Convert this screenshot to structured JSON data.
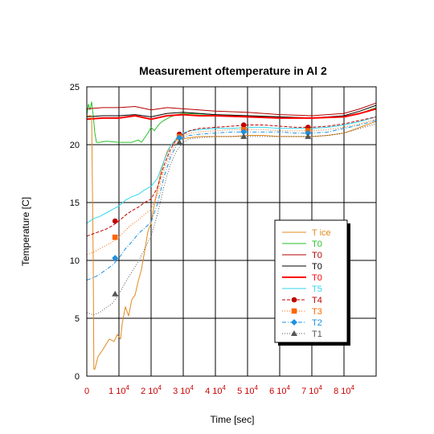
{
  "chart_data": {
    "type": "line",
    "title": "Measurement oftemperature in Al 2",
    "xlabel": "Time [sec]",
    "ylabel": "Temperature [C]",
    "xlim": [
      0,
      90000
    ],
    "ylim": [
      0,
      25
    ],
    "grid": true,
    "legend_position": "lower-right",
    "x_ticks": [
      {
        "value": 0,
        "base": "0",
        "exp": ""
      },
      {
        "value": 10000,
        "base": "1 10",
        "exp": "4"
      },
      {
        "value": 20000,
        "base": "2 10",
        "exp": "4"
      },
      {
        "value": 30000,
        "base": "3 10",
        "exp": "4"
      },
      {
        "value": 40000,
        "base": "4 10",
        "exp": "4"
      },
      {
        "value": 50000,
        "base": "5 10",
        "exp": "4"
      },
      {
        "value": 60000,
        "base": "6 10",
        "exp": "4"
      },
      {
        "value": 70000,
        "base": "7 10",
        "exp": "4"
      },
      {
        "value": 80000,
        "base": "8 10",
        "exp": "4"
      }
    ],
    "y_ticks": [
      "0",
      "5",
      "10",
      "15",
      "20",
      "25"
    ],
    "x_tick_color": "#cc0000",
    "series": [
      {
        "name": "T ice",
        "color": "#e08a1e",
        "width": 1,
        "dash": "",
        "marker": "",
        "x": [
          0,
          1500,
          2000,
          2200,
          2500,
          3500,
          5000,
          7000,
          8500,
          9500,
          10500,
          11000,
          12000,
          13000,
          14000,
          15000,
          16000,
          17000,
          18000,
          19000,
          20000,
          21000,
          22000,
          23000,
          24000,
          25000,
          26000,
          27000,
          28000,
          30000,
          32000,
          35000,
          40000,
          45000,
          50000,
          55000,
          60000,
          65000,
          70000,
          75000,
          80000,
          85000,
          90000
        ],
        "y": [
          22.5,
          22.5,
          10,
          0.6,
          0.6,
          1.7,
          2.3,
          3.2,
          3.0,
          3.6,
          3.2,
          4.5,
          6.0,
          5.2,
          6.6,
          7.0,
          8.2,
          9.2,
          10.8,
          12.5,
          13.2,
          14.8,
          16.2,
          17.6,
          18.6,
          19.4,
          19.9,
          20.2,
          20.4,
          20.5,
          20.6,
          20.7,
          20.7,
          20.7,
          20.8,
          20.8,
          20.7,
          20.7,
          20.7,
          20.8,
          21.0,
          21.5,
          22.0
        ]
      },
      {
        "name": "T0",
        "color": "#27c027",
        "width": 1,
        "dash": "",
        "marker": "",
        "x": [
          0,
          500,
          1000,
          1500,
          2000,
          2500,
          3000,
          4000,
          6000,
          10000,
          14000,
          16000,
          17000,
          18000,
          19000,
          20000,
          21000,
          22000,
          23000,
          24000,
          26000,
          28000,
          30000,
          40000,
          50000,
          60000,
          70000,
          80000,
          85000,
          90000
        ],
        "y": [
          22.5,
          23.5,
          23.0,
          23.7,
          22.5,
          21.0,
          20.2,
          20.2,
          20.3,
          20.2,
          20.2,
          20.4,
          20.2,
          20.6,
          21.0,
          21.5,
          21.2,
          21.6,
          21.9,
          22.1,
          22.4,
          22.6,
          22.7,
          22.6,
          22.5,
          22.4,
          22.3,
          22.4,
          22.7,
          23.2
        ]
      },
      {
        "name": "T0",
        "color": "#b50000",
        "width": 1,
        "dash": "",
        "marker": "",
        "x": [
          0,
          5000,
          10000,
          15000,
          20000,
          25000,
          30000,
          35000,
          40000,
          50000,
          60000,
          70000,
          80000,
          85000,
          90000
        ],
        "y": [
          23.1,
          23.2,
          23.2,
          23.3,
          23.0,
          23.2,
          23.1,
          23.0,
          22.9,
          22.8,
          22.6,
          22.5,
          22.7,
          23.1,
          23.6
        ]
      },
      {
        "name": "T0",
        "color": "#000000",
        "width": 1,
        "dash": "",
        "marker": "",
        "x": [
          0,
          5000,
          10000,
          15000,
          20000,
          25000,
          30000,
          40000,
          50000,
          60000,
          70000,
          80000,
          85000,
          90000
        ],
        "y": [
          22.4,
          22.5,
          22.5,
          22.6,
          22.4,
          22.7,
          22.8,
          22.6,
          22.5,
          22.4,
          22.3,
          22.5,
          22.9,
          23.4
        ]
      },
      {
        "name": "T0",
        "color": "#ff0000",
        "width": 2,
        "dash": "",
        "marker": "",
        "x": [
          0,
          5000,
          10000,
          15000,
          20000,
          25000,
          30000,
          35000,
          40000,
          50000,
          60000,
          70000,
          80000,
          85000,
          90000
        ],
        "y": [
          22.2,
          22.3,
          22.3,
          22.5,
          22.2,
          22.5,
          22.6,
          22.5,
          22.5,
          22.4,
          22.3,
          22.3,
          22.4,
          22.7,
          23.1
        ]
      },
      {
        "name": "T5",
        "color": "#33d6ee",
        "width": 1,
        "dash": "",
        "marker": "",
        "x": [
          0,
          2000,
          4000,
          6000,
          8000,
          10000,
          12000,
          14000,
          16000,
          18000,
          20000,
          22000,
          24000,
          26000,
          28000,
          30000,
          32000,
          35000,
          40000,
          45000,
          50000,
          55000,
          60000,
          65000,
          70000,
          75000,
          80000,
          85000,
          90000
        ],
        "y": [
          13.2,
          13.6,
          13.8,
          14.1,
          14.4,
          14.7,
          15.2,
          15.5,
          15.7,
          16.1,
          16.4,
          17.1,
          18.6,
          19.9,
          20.6,
          21.0,
          21.2,
          21.3,
          21.4,
          21.4,
          21.5,
          21.5,
          21.4,
          21.4,
          21.4,
          21.5,
          21.7,
          22.0,
          22.4
        ]
      },
      {
        "name": "T4",
        "color": "#c00000",
        "width": 1,
        "dash": "4,2",
        "marker": "circle",
        "x": [
          0,
          2000,
          4000,
          6000,
          8000,
          10000,
          12000,
          14000,
          16000,
          18000,
          20000,
          22000,
          24000,
          26000,
          28000,
          30000,
          32000,
          35000,
          40000,
          45000,
          50000,
          55000,
          60000,
          65000,
          70000,
          75000,
          80000,
          85000,
          90000
        ],
        "y": [
          12.1,
          12.3,
          12.5,
          12.7,
          13.0,
          13.4,
          13.9,
          14.3,
          14.6,
          15.0,
          15.3,
          16.3,
          18.2,
          19.6,
          20.5,
          20.9,
          21.2,
          21.4,
          21.5,
          21.6,
          21.7,
          21.7,
          21.6,
          21.5,
          21.5,
          21.6,
          21.8,
          22.1,
          22.4
        ]
      },
      {
        "name": "T3",
        "color": "#ff6600",
        "width": 1,
        "dash": "1,2",
        "marker": "square",
        "x": [
          0,
          2000,
          4000,
          6000,
          8000,
          10000,
          12000,
          14000,
          16000,
          18000,
          20000,
          22000,
          24000,
          26000,
          28000,
          30000,
          32000,
          35000,
          40000,
          45000,
          50000,
          55000,
          60000,
          65000,
          70000,
          75000,
          80000,
          85000,
          90000
        ],
        "y": [
          10.5,
          10.7,
          11.0,
          11.3,
          11.6,
          12.0,
          12.6,
          13.1,
          13.5,
          14.0,
          14.4,
          15.7,
          17.8,
          19.3,
          20.2,
          20.7,
          21.0,
          21.1,
          21.2,
          21.3,
          21.3,
          21.3,
          21.2,
          21.2,
          21.2,
          21.3,
          21.5,
          21.8,
          22.2
        ]
      },
      {
        "name": "T2",
        "color": "#1e90e0",
        "width": 1,
        "dash": "5,2,1,2",
        "marker": "diamond",
        "x": [
          0,
          2000,
          4000,
          6000,
          8000,
          10000,
          12000,
          14000,
          16000,
          18000,
          20000,
          22000,
          24000,
          26000,
          28000,
          30000,
          32000,
          35000,
          40000,
          45000,
          50000,
          55000,
          60000,
          65000,
          70000,
          75000,
          80000,
          85000,
          90000
        ],
        "y": [
          8.3,
          8.5,
          8.8,
          9.2,
          9.6,
          10.2,
          11.0,
          11.6,
          12.3,
          12.8,
          13.3,
          14.9,
          17.2,
          18.9,
          20.0,
          20.6,
          20.8,
          20.9,
          21.0,
          21.1,
          21.1,
          21.1,
          21.1,
          21.0,
          21.0,
          21.1,
          21.4,
          21.7,
          22.1
        ]
      },
      {
        "name": "T1",
        "color": "#555555",
        "width": 1,
        "dash": "1,2",
        "marker": "triangle",
        "x": [
          0,
          2000,
          4000,
          6000,
          8000,
          10000,
          12000,
          14000,
          16000,
          18000,
          20000,
          22000,
          24000,
          26000,
          28000,
          30000,
          32000,
          35000,
          40000,
          45000,
          50000,
          55000,
          60000,
          65000,
          70000,
          75000,
          80000,
          85000,
          90000
        ],
        "y": [
          5.5,
          5.3,
          5.5,
          5.9,
          6.3,
          7.1,
          8.1,
          9.0,
          9.9,
          11.0,
          12.1,
          14.0,
          16.4,
          18.3,
          19.5,
          20.2,
          20.5,
          20.6,
          20.7,
          20.7,
          20.7,
          20.7,
          20.7,
          20.7,
          20.7,
          20.8,
          21.0,
          21.4,
          21.8
        ]
      }
    ]
  }
}
